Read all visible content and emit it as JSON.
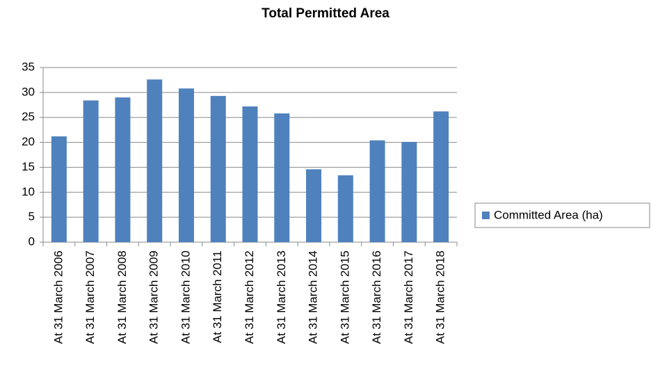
{
  "chart_data": {
    "type": "bar",
    "title": "Total Permitted Area",
    "categories": [
      "At 31 March 2006",
      "At 31 March 2007",
      "At 31 March 2008",
      "At 31 March 2009",
      "At 31 March 2010",
      "At 31 March 2011",
      "At 31 March 2012",
      "At 31 March 2013",
      "At 31 March 2014",
      "At 31 March 2015",
      "At 31 March 2016",
      "At 31 March 2017",
      "At 31 March 2018"
    ],
    "series": [
      {
        "name": "Committed Area (ha)",
        "color": "#4f81bd",
        "values": [
          21.2,
          28.4,
          29.0,
          32.6,
          30.8,
          29.3,
          27.2,
          25.8,
          14.6,
          13.4,
          20.4,
          20.1,
          26.2
        ]
      }
    ],
    "ylim": [
      0,
      35
    ],
    "yticks": [
      0,
      5,
      10,
      15,
      20,
      25,
      30,
      35
    ],
    "grid": true,
    "legend": "right"
  }
}
